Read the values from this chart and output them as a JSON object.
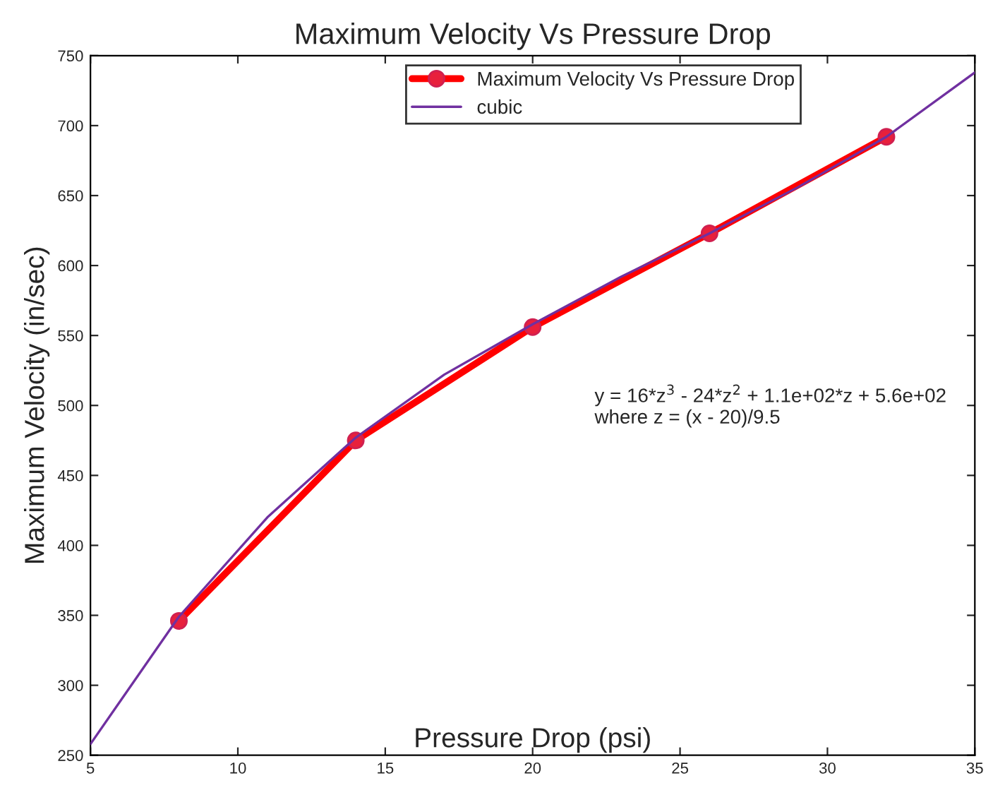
{
  "chart_data": {
    "type": "line",
    "title": "Maximum Velocity Vs Pressure Drop",
    "xlabel": "Pressure Drop (psi)",
    "ylabel": "Maximum Velocity (in/sec)",
    "xlim": [
      5,
      35
    ],
    "xticks": [
      5,
      10,
      15,
      20,
      25,
      30,
      35
    ],
    "ylim": [
      250,
      750
    ],
    "yticks": [
      250,
      300,
      350,
      400,
      450,
      500,
      550,
      600,
      650,
      700,
      750
    ],
    "grid": false,
    "legend": "top",
    "series": [
      {
        "name": "Maximum Velocity Vs Pressure Drop",
        "color": "#ff0000",
        "marker": "circle",
        "line_style": "solid",
        "x": [
          8,
          14,
          20,
          26,
          32
        ],
        "values": [
          346,
          475,
          556,
          623,
          692
        ]
      },
      {
        "name": "cubic",
        "color": "#7030a0",
        "marker": "none",
        "line_style": "solid",
        "x": [
          5,
          8,
          11,
          14,
          17,
          20,
          23,
          26,
          29,
          32,
          35
        ],
        "values": [
          258,
          349,
          420,
          477,
          522,
          558,
          592,
          623,
          656,
          692,
          738
        ]
      }
    ],
    "annotations": [
      "y = 16*z$^{3}$ - 24*z$^{2}$ + 1.1e+02*z + 5.6e+02\nwhere z = (x - 20)/9.5"
    ]
  }
}
